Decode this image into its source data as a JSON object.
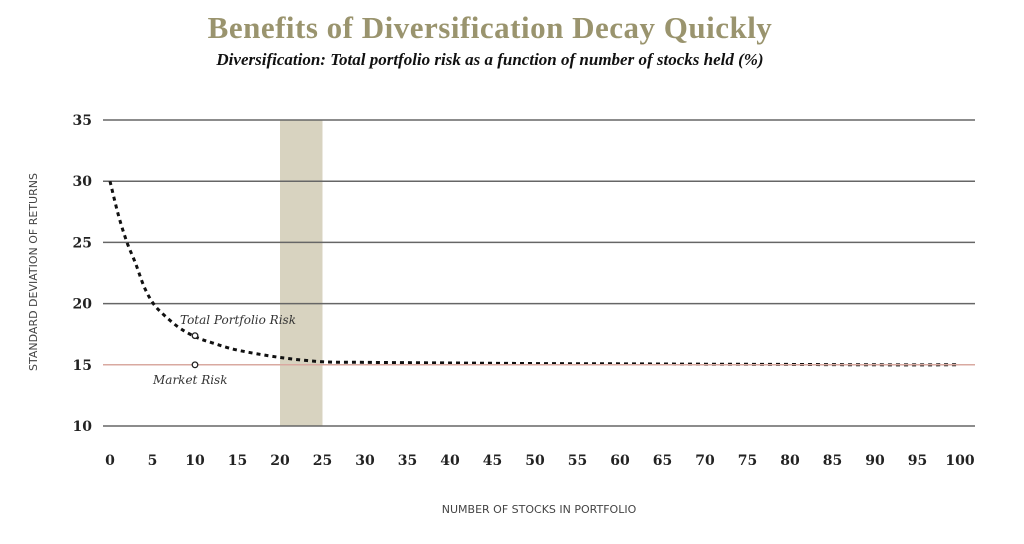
{
  "chart_data": {
    "type": "line",
    "title": "Benefits of Diversification Decay Quickly",
    "subtitle": "Diversification: Total portfolio risk as a function of number of stocks held (%)",
    "xlabel": "NUMBER OF STOCKS IN PORTFOLIO",
    "ylabel": "STANDARD DEVIATION OF RETURNS",
    "xlim": [
      0,
      100
    ],
    "ylim": [
      10,
      35
    ],
    "xticks": [
      "0",
      "5",
      "10",
      "15",
      "20",
      "25",
      "30",
      "35",
      "40",
      "45",
      "50",
      "55",
      "60",
      "65",
      "70",
      "75",
      "80",
      "85",
      "90",
      "95",
      "100"
    ],
    "yticks": [
      "35",
      "30",
      "25",
      "20",
      "15",
      "10"
    ],
    "grid": true,
    "highlight_band": [
      20,
      25
    ],
    "series": [
      {
        "name": "Total Portfolio Risk",
        "style": "dotted",
        "color": "#111111",
        "x": [
          0,
          1,
          2,
          3,
          4,
          5,
          6,
          8,
          10,
          12,
          15,
          20,
          25,
          30,
          40,
          50,
          60,
          70,
          80,
          90,
          100
        ],
        "y": [
          30,
          27.2,
          25,
          23.3,
          21.4,
          20.1,
          19.3,
          18.1,
          17.3,
          16.8,
          16.2,
          15.6,
          15.25,
          15.2,
          15.15,
          15.1,
          15.08,
          15.05,
          15.03,
          15.0,
          15.0
        ]
      },
      {
        "name": "Market Risk",
        "style": "solid",
        "color": "#d9a9a0",
        "x": [
          0,
          100
        ],
        "y": [
          15,
          15
        ]
      }
    ],
    "annotations": [
      {
        "text": "Total Portfolio Risk",
        "x": 10,
        "y": 17.3
      },
      {
        "text": "Market Risk",
        "x": 10,
        "y": 15
      }
    ],
    "colors": {
      "title": "#9a946e",
      "band": "#d8d3c0",
      "grid": "#666666"
    }
  }
}
